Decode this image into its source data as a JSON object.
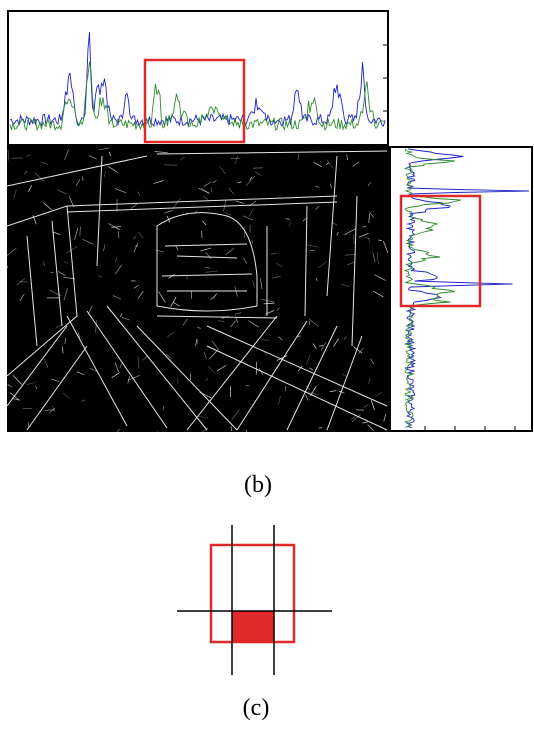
{
  "figure": {
    "caption_b": "(b)",
    "caption_c": "(c)"
  },
  "colors": {
    "series_blue": "#1f22c8",
    "series_green": "#2e8b2e",
    "highlight_red": "#e02a2a",
    "edge_image_bg": "#000000",
    "edge_lines": "#ffffff"
  },
  "icons": {
    "top_profile": "horizontal-projection-plot",
    "right_profile": "vertical-projection-plot",
    "edge_image": "edge-detected-parking-scene",
    "overlap_diagram": "grid-cell-overlap-diagram"
  }
}
